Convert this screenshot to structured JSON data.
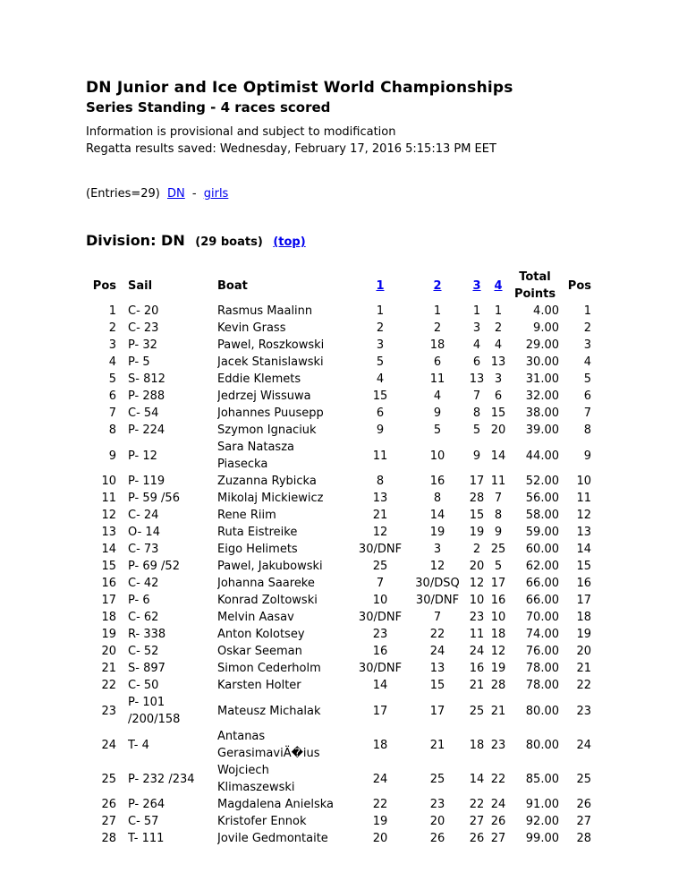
{
  "colors": {
    "background": "#FFFFFF",
    "text": "#000000",
    "link": "#0000EE"
  },
  "page": {
    "title": "DN Junior and Ice Optimist World Championships",
    "subtitle": "Series Standing - 4 races scored",
    "info_line1": "Information is provisional and subject to modification",
    "info_line2": "Regatta results saved: Wednesday, February 17, 2016 5:15:13 PM EET",
    "entries": {
      "prefix": "(Entries=29)",
      "dn_link": "DN",
      "separator": "-",
      "girls_link": "girls"
    },
    "division": {
      "heading": "Division: DN",
      "boats_count": "(29 boats)",
      "top_link": "(top)"
    }
  },
  "table": {
    "headers": {
      "pos": "Pos",
      "sail": "Sail",
      "boat": "Boat",
      "race1": "1",
      "race2": "2",
      "race3": "3",
      "race4": "4",
      "total": "Total\nPoints",
      "pos2": "Pos"
    },
    "rows": [
      [
        "1",
        "C- 20",
        "Rasmus Maalinn",
        "1",
        "1",
        "1",
        "1",
        "4.00",
        "1"
      ],
      [
        "2",
        "C- 23",
        "Kevin Grass",
        "2",
        "2",
        "3",
        "2",
        "9.00",
        "2"
      ],
      [
        "3",
        "P- 32",
        "Pawel, Roszkowski",
        "3",
        "18",
        "4",
        "4",
        "29.00",
        "3"
      ],
      [
        "4",
        "P- 5",
        "Jacek Stanislawski",
        "5",
        "6",
        "6",
        "13",
        "30.00",
        "4"
      ],
      [
        "5",
        "S- 812",
        "Eddie Klemets",
        "4",
        "11",
        "13",
        "3",
        "31.00",
        "5"
      ],
      [
        "6",
        "P- 288",
        "Jedrzej Wissuwa",
        "15",
        "4",
        "7",
        "6",
        "32.00",
        "6"
      ],
      [
        "7",
        "C- 54",
        "Johannes Puusepp",
        "6",
        "9",
        "8",
        "15",
        "38.00",
        "7"
      ],
      [
        "8",
        "P- 224",
        "Szymon Ignaciuk",
        "9",
        "5",
        "5",
        "20",
        "39.00",
        "8"
      ],
      [
        "9",
        "P- 12",
        "Sara Natasza\nPiasecka",
        "11",
        "10",
        "9",
        "14",
        "44.00",
        "9"
      ],
      [
        "10",
        "P- 119",
        "Zuzanna Rybicka",
        "8",
        "16",
        "17",
        "11",
        "52.00",
        "10"
      ],
      [
        "11",
        "P- 59 /56",
        "Mikolaj Mickiewicz",
        "13",
        "8",
        "28",
        "7",
        "56.00",
        "11"
      ],
      [
        "12",
        "C- 24",
        "Rene Riim",
        "21",
        "14",
        "15",
        "8",
        "58.00",
        "12"
      ],
      [
        "13",
        "O- 14",
        "Ruta Eistreike",
        "12",
        "19",
        "19",
        "9",
        "59.00",
        "13"
      ],
      [
        "14",
        "C- 73",
        "Eigo Helimets",
        "30/DNF",
        "3",
        "2",
        "25",
        "60.00",
        "14"
      ],
      [
        "15",
        "P- 69 /52",
        "Pawel, Jakubowski",
        "25",
        "12",
        "20",
        "5",
        "62.00",
        "15"
      ],
      [
        "16",
        "C- 42",
        "Johanna Saareke",
        "7",
        "30/DSQ",
        "12",
        "17",
        "66.00",
        "16"
      ],
      [
        "17",
        "P- 6",
        "Konrad Zoltowski",
        "10",
        "30/DNF",
        "10",
        "16",
        "66.00",
        "17"
      ],
      [
        "18",
        "C- 62",
        "Melvin Aasav",
        "30/DNF",
        "7",
        "23",
        "10",
        "70.00",
        "18"
      ],
      [
        "19",
        "R- 338",
        "Anton Kolotsey",
        "23",
        "22",
        "11",
        "18",
        "74.00",
        "19"
      ],
      [
        "20",
        "C- 52",
        "Oskar Seeman",
        "16",
        "24",
        "24",
        "12",
        "76.00",
        "20"
      ],
      [
        "21",
        "S- 897",
        "Simon Cederholm",
        "30/DNF",
        "13",
        "16",
        "19",
        "78.00",
        "21"
      ],
      [
        "22",
        "C- 50",
        "Karsten Holter",
        "14",
        "15",
        "21",
        "28",
        "78.00",
        "22"
      ],
      [
        "23",
        "P- 101\n/200/158",
        "Mateusz Michalak",
        "17",
        "17",
        "25",
        "21",
        "80.00",
        "23"
      ],
      [
        "24",
        "T- 4",
        "Antanas\nGerasimaviÄ�ius",
        "18",
        "21",
        "18",
        "23",
        "80.00",
        "24"
      ],
      [
        "25",
        "P- 232 /234",
        "Wojciech\nKlimaszewski",
        "24",
        "25",
        "14",
        "22",
        "85.00",
        "25"
      ],
      [
        "26",
        "P- 264",
        "Magdalena Anielska",
        "22",
        "23",
        "22",
        "24",
        "91.00",
        "26"
      ],
      [
        "27",
        "C- 57",
        "Kristofer Ennok",
        "19",
        "20",
        "27",
        "26",
        "92.00",
        "27"
      ],
      [
        "28",
        "T- 111",
        "Jovile Gedmontaite",
        "20",
        "26",
        "26",
        "27",
        "99.00",
        "28"
      ]
    ]
  }
}
